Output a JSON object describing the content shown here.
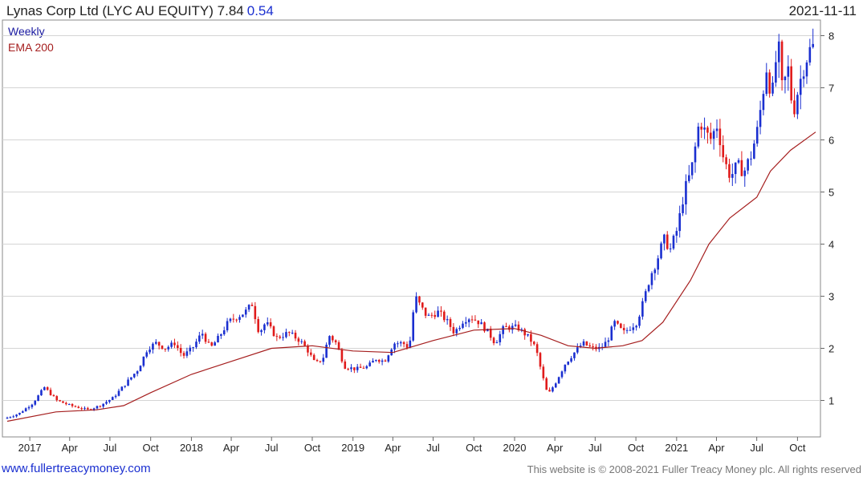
{
  "header": {
    "title": "Lynas Corp Ltd (LYC AU EQUITY) 7.84",
    "change": "0.54",
    "date": "2021-11-11"
  },
  "legend": {
    "period": "Weekly",
    "indicator": "EMA 200"
  },
  "footer": {
    "site": "www.fullertreacymoney.com",
    "copyright": "This website is © 2008-2021 Fuller Treacy Money plc. All rights reserved"
  },
  "colors": {
    "up": "#1a2fd0",
    "down": "#e01b1b",
    "ema": "#a51e1e",
    "grid": "#d4d4d4"
  },
  "chart_data": {
    "type": "candlestick",
    "title": "Lynas Corp Ltd (LYC AU EQUITY) 7.84",
    "ylim": [
      0.3,
      8.3
    ],
    "y_ticks": [
      1,
      2,
      3,
      4,
      5,
      6,
      7,
      8
    ],
    "x_range": [
      "2016-11-11",
      "2021-11-11"
    ],
    "x_ticks": [
      {
        "date": "2017-01-01",
        "label": "2017"
      },
      {
        "date": "2017-04-01",
        "label": "Apr"
      },
      {
        "date": "2017-07-01",
        "label": "Jul"
      },
      {
        "date": "2017-10-01",
        "label": "Oct"
      },
      {
        "date": "2018-01-01",
        "label": "2018"
      },
      {
        "date": "2018-04-01",
        "label": "Apr"
      },
      {
        "date": "2018-07-01",
        "label": "Jul"
      },
      {
        "date": "2018-10-01",
        "label": "Oct"
      },
      {
        "date": "2019-01-01",
        "label": "2019"
      },
      {
        "date": "2019-04-01",
        "label": "Apr"
      },
      {
        "date": "2019-07-01",
        "label": "Jul"
      },
      {
        "date": "2019-10-01",
        "label": "Oct"
      },
      {
        "date": "2020-01-01",
        "label": "2020"
      },
      {
        "date": "2020-04-01",
        "label": "Apr"
      },
      {
        "date": "2020-07-01",
        "label": "Jul"
      },
      {
        "date": "2020-10-01",
        "label": "Oct"
      },
      {
        "date": "2021-01-01",
        "label": "2021"
      },
      {
        "date": "2021-04-01",
        "label": "Apr"
      },
      {
        "date": "2021-07-01",
        "label": "Jul"
      },
      {
        "date": "2021-10-01",
        "label": "Oct"
      }
    ],
    "price_path": [
      [
        "2016-11-11",
        0.65
      ],
      [
        "2016-12-15",
        0.75
      ],
      [
        "2017-01-15",
        0.95
      ],
      [
        "2017-02-10",
        1.25
      ],
      [
        "2017-03-10",
        1.0
      ],
      [
        "2017-04-10",
        0.9
      ],
      [
        "2017-05-20",
        0.82
      ],
      [
        "2017-06-15",
        0.9
      ],
      [
        "2017-07-15",
        1.05
      ],
      [
        "2017-08-10",
        1.3
      ],
      [
        "2017-09-10",
        1.6
      ],
      [
        "2017-10-01",
        2.0
      ],
      [
        "2017-10-20",
        2.1
      ],
      [
        "2017-11-10",
        2.0
      ],
      [
        "2017-12-01",
        2.1
      ],
      [
        "2017-12-20",
        1.85
      ],
      [
        "2018-01-10",
        2.0
      ],
      [
        "2018-02-01",
        2.3
      ],
      [
        "2018-02-20",
        2.0
      ],
      [
        "2018-03-10",
        2.2
      ],
      [
        "2018-04-01",
        2.5
      ],
      [
        "2018-04-20",
        2.6
      ],
      [
        "2018-05-10",
        2.7
      ],
      [
        "2018-05-25",
        2.85
      ],
      [
        "2018-06-10",
        2.3
      ],
      [
        "2018-06-25",
        2.5
      ],
      [
        "2018-07-20",
        2.2
      ],
      [
        "2018-08-15",
        2.3
      ],
      [
        "2018-09-10",
        2.15
      ],
      [
        "2018-09-25",
        2.0
      ],
      [
        "2018-10-15",
        1.7
      ],
      [
        "2018-11-01",
        1.8
      ],
      [
        "2018-11-15",
        2.25
      ],
      [
        "2018-12-01",
        2.1
      ],
      [
        "2018-12-20",
        1.65
      ],
      [
        "2019-01-15",
        1.6
      ],
      [
        "2019-02-10",
        1.65
      ],
      [
        "2019-03-01",
        1.8
      ],
      [
        "2019-03-20",
        1.75
      ],
      [
        "2019-04-10",
        2.1
      ],
      [
        "2019-05-01",
        2.1
      ],
      [
        "2019-05-15",
        2.0
      ],
      [
        "2019-05-28",
        3.0
      ],
      [
        "2019-06-10",
        2.8
      ],
      [
        "2019-06-25",
        2.6
      ],
      [
        "2019-07-20",
        2.7
      ],
      [
        "2019-08-10",
        2.5
      ],
      [
        "2019-08-25",
        2.3
      ],
      [
        "2019-09-15",
        2.55
      ],
      [
        "2019-10-01",
        2.6
      ],
      [
        "2019-10-20",
        2.5
      ],
      [
        "2019-11-10",
        2.3
      ],
      [
        "2019-11-25",
        2.1
      ],
      [
        "2019-12-15",
        2.4
      ],
      [
        "2020-01-15",
        2.4
      ],
      [
        "2020-02-10",
        2.2
      ],
      [
        "2020-02-25",
        2.0
      ],
      [
        "2020-03-10",
        1.5
      ],
      [
        "2020-03-23",
        1.1
      ],
      [
        "2020-04-10",
        1.35
      ],
      [
        "2020-05-01",
        1.7
      ],
      [
        "2020-05-20",
        1.9
      ],
      [
        "2020-06-10",
        2.1
      ],
      [
        "2020-07-01",
        2.0
      ],
      [
        "2020-07-20",
        2.0
      ],
      [
        "2020-08-05",
        2.15
      ],
      [
        "2020-08-20",
        2.5
      ],
      [
        "2020-09-10",
        2.3
      ],
      [
        "2020-09-25",
        2.4
      ],
      [
        "2020-10-10",
        2.5
      ],
      [
        "2020-10-25",
        2.9
      ],
      [
        "2020-11-10",
        3.4
      ],
      [
        "2020-11-25",
        3.7
      ],
      [
        "2020-12-10",
        4.1
      ],
      [
        "2020-12-25",
        3.9
      ],
      [
        "2021-01-10",
        4.3
      ],
      [
        "2021-01-25",
        5.0
      ],
      [
        "2021-02-10",
        5.4
      ],
      [
        "2021-02-20",
        5.9
      ],
      [
        "2021-03-01",
        6.4
      ],
      [
        "2021-03-10",
        6.2
      ],
      [
        "2021-03-25",
        6.0
      ],
      [
        "2021-04-10",
        6.3
      ],
      [
        "2021-04-25",
        5.6
      ],
      [
        "2021-05-10",
        5.3
      ],
      [
        "2021-05-25",
        5.5
      ],
      [
        "2021-06-10",
        5.4
      ],
      [
        "2021-06-25",
        5.7
      ],
      [
        "2021-07-10",
        6.2
      ],
      [
        "2021-07-20",
        6.8
      ],
      [
        "2021-08-01",
        7.5
      ],
      [
        "2021-08-10",
        6.7
      ],
      [
        "2021-08-25",
        7.9
      ],
      [
        "2021-09-05",
        6.8
      ],
      [
        "2021-09-15",
        7.5
      ],
      [
        "2021-09-28",
        6.5
      ],
      [
        "2021-10-10",
        7.0
      ],
      [
        "2021-10-25",
        7.5
      ],
      [
        "2021-11-11",
        7.84
      ]
    ],
    "ema_200": [
      [
        "2016-11-11",
        0.6
      ],
      [
        "2017-03-01",
        0.78
      ],
      [
        "2017-06-01",
        0.82
      ],
      [
        "2017-08-01",
        0.9
      ],
      [
        "2017-10-01",
        1.15
      ],
      [
        "2018-01-01",
        1.5
      ],
      [
        "2018-04-01",
        1.75
      ],
      [
        "2018-07-01",
        2.0
      ],
      [
        "2018-10-01",
        2.05
      ],
      [
        "2019-01-01",
        1.95
      ],
      [
        "2019-04-01",
        1.92
      ],
      [
        "2019-07-01",
        2.15
      ],
      [
        "2019-10-01",
        2.35
      ],
      [
        "2020-01-01",
        2.38
      ],
      [
        "2020-03-01",
        2.25
      ],
      [
        "2020-05-01",
        2.05
      ],
      [
        "2020-07-01",
        2.0
      ],
      [
        "2020-09-01",
        2.05
      ],
      [
        "2020-10-15",
        2.15
      ],
      [
        "2020-12-01",
        2.5
      ],
      [
        "2021-02-01",
        3.3
      ],
      [
        "2021-03-15",
        4.0
      ],
      [
        "2021-05-01",
        4.5
      ],
      [
        "2021-07-01",
        4.9
      ],
      [
        "2021-08-01",
        5.4
      ],
      [
        "2021-09-15",
        5.8
      ],
      [
        "2021-11-11",
        6.15
      ]
    ]
  }
}
